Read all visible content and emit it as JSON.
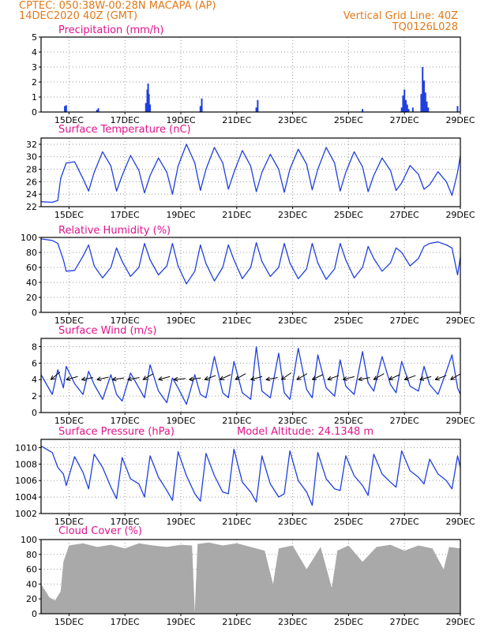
{
  "header": {
    "left_line1": "CPTEC:   050:38W-00:28N   MACAPA (AP)",
    "left_line2": "14DEC2020 40Z (GMT)",
    "right_line1": "Vertical Grid Line: 40Z",
    "right_line2": "TQ0126L028"
  },
  "x_tick_labels": [
    "15DEC",
    "17DEC",
    "19DEC",
    "21DEC",
    "23DEC",
    "25DEC",
    "27DEC",
    "29DEC"
  ],
  "colors": {
    "header": "#e07a1a",
    "title": "#e0148c",
    "series": "#1f3fe0",
    "cloud": "#a9a9a9",
    "grid": "#9a9a9a"
  },
  "chart_data": [
    {
      "type": "bar",
      "title": "Precipitation (mm/h)",
      "ylim": [
        0,
        5
      ],
      "yticks": [
        0,
        1,
        2,
        3,
        4,
        5
      ],
      "x_days": [
        0.85,
        0.9,
        2.0,
        2.05,
        3.75,
        3.8,
        3.83,
        3.86,
        3.9,
        5.7,
        5.75,
        7.7,
        7.75,
        11.5,
        12.9,
        12.95,
        13.0,
        13.05,
        13.1,
        13.15,
        13.3,
        13.6,
        13.65,
        13.7,
        13.75,
        13.8,
        13.85,
        14.9
      ],
      "values": [
        0.4,
        0.45,
        0.15,
        0.25,
        0.6,
        1.5,
        1.9,
        1.2,
        0.5,
        0.4,
        0.9,
        0.3,
        0.8,
        0.2,
        0.3,
        1.1,
        1.5,
        0.8,
        0.5,
        0.2,
        0.3,
        1.2,
        3.0,
        2.1,
        1.3,
        0.7,
        0.3,
        0.4
      ]
    },
    {
      "type": "line",
      "title": "Surface Temperature (nC)",
      "ylim": [
        22,
        33
      ],
      "yticks": [
        22,
        24,
        26,
        28,
        30,
        32
      ],
      "x_days": [
        0.0,
        0.4,
        0.6,
        0.7,
        0.9,
        1.2,
        1.5,
        1.7,
        1.9,
        2.2,
        2.5,
        2.7,
        2.9,
        3.2,
        3.5,
        3.7,
        3.9,
        4.2,
        4.5,
        4.7,
        4.9,
        5.2,
        5.5,
        5.7,
        5.9,
        6.2,
        6.5,
        6.7,
        6.9,
        7.2,
        7.5,
        7.7,
        7.9,
        8.2,
        8.5,
        8.7,
        8.9,
        9.2,
        9.5,
        9.7,
        9.9,
        10.2,
        10.5,
        10.7,
        10.9,
        11.2,
        11.5,
        11.7,
        11.9,
        12.2,
        12.5,
        12.7,
        12.9,
        13.2,
        13.5,
        13.7,
        13.9,
        14.2,
        14.5,
        14.7,
        14.9,
        15.0
      ],
      "values": [
        22.8,
        22.7,
        23.0,
        26.5,
        29.0,
        29.2,
        26.5,
        24.5,
        27.5,
        30.8,
        28.5,
        24.5,
        27.0,
        30.2,
        27.8,
        24.2,
        27.0,
        29.8,
        27.5,
        24.0,
        28.5,
        32.0,
        29.0,
        24.6,
        28.0,
        31.5,
        29.0,
        24.8,
        27.5,
        31.0,
        28.5,
        24.4,
        27.5,
        30.4,
        28.0,
        24.3,
        28.0,
        31.2,
        28.8,
        24.7,
        28.0,
        31.5,
        29.0,
        24.5,
        27.5,
        30.8,
        28.4,
        24.4,
        27.0,
        29.8,
        27.8,
        24.6,
        25.8,
        28.6,
        27.2,
        24.8,
        25.5,
        27.6,
        26.0,
        23.8,
        27.5,
        30.2
      ]
    },
    {
      "type": "line",
      "title": "Relative Humidity (%)",
      "ylim": [
        0,
        100
      ],
      "yticks": [
        0,
        20,
        40,
        60,
        80,
        100
      ],
      "x_days": [
        0.0,
        0.4,
        0.6,
        0.8,
        0.9,
        1.2,
        1.5,
        1.7,
        1.9,
        2.2,
        2.5,
        2.7,
        2.9,
        3.2,
        3.5,
        3.7,
        3.9,
        4.2,
        4.5,
        4.7,
        4.9,
        5.2,
        5.5,
        5.7,
        5.9,
        6.2,
        6.5,
        6.7,
        6.9,
        7.2,
        7.5,
        7.7,
        7.9,
        8.2,
        8.5,
        8.7,
        8.9,
        9.2,
        9.5,
        9.7,
        9.9,
        10.2,
        10.5,
        10.7,
        10.9,
        11.2,
        11.5,
        11.7,
        11.9,
        12.2,
        12.5,
        12.7,
        12.9,
        13.2,
        13.5,
        13.7,
        13.9,
        14.2,
        14.5,
        14.7,
        14.9,
        15.0
      ],
      "values": [
        98.0,
        96.0,
        92.0,
        70.0,
        55.0,
        56.0,
        75.0,
        90.0,
        62.0,
        46.0,
        60.0,
        86.0,
        68.0,
        48.0,
        60.0,
        92.0,
        70.0,
        50.0,
        62.0,
        92.0,
        62.0,
        38.0,
        55.0,
        90.0,
        65.0,
        42.0,
        60.0,
        90.0,
        70.0,
        45.0,
        60.0,
        93.0,
        68.0,
        48.0,
        60.0,
        92.0,
        66.0,
        45.0,
        58.0,
        92.0,
        66.0,
        44.0,
        58.0,
        92.0,
        70.0,
        46.0,
        60.0,
        88.0,
        72.0,
        55.0,
        66.0,
        86.0,
        80.0,
        62.0,
        72.0,
        88.0,
        92.0,
        94.0,
        90.0,
        86.0,
        50.0,
        74.0
      ]
    },
    {
      "type": "line",
      "title": "Surface Wind (m/s)",
      "ylim": [
        0,
        9
      ],
      "yticks": [
        0,
        2,
        4,
        6,
        8
      ],
      "x_days": [
        0.0,
        0.4,
        0.6,
        0.8,
        0.9,
        1.2,
        1.5,
        1.7,
        1.9,
        2.2,
        2.5,
        2.7,
        2.9,
        3.2,
        3.5,
        3.7,
        3.9,
        4.2,
        4.5,
        4.7,
        4.9,
        5.2,
        5.5,
        5.7,
        5.9,
        6.2,
        6.5,
        6.7,
        6.9,
        7.2,
        7.5,
        7.7,
        7.9,
        8.2,
        8.5,
        8.7,
        8.9,
        9.2,
        9.5,
        9.7,
        9.9,
        10.2,
        10.5,
        10.7,
        10.9,
        11.2,
        11.5,
        11.7,
        11.9,
        12.2,
        12.5,
        12.7,
        12.9,
        13.2,
        13.5,
        13.7,
        13.9,
        14.2,
        14.5,
        14.7,
        14.9,
        15.0
      ],
      "values": [
        4.6,
        2.2,
        5.2,
        3.0,
        5.6,
        3.5,
        2.2,
        5.0,
        3.4,
        1.6,
        4.6,
        2.2,
        1.4,
        4.8,
        3.0,
        1.8,
        5.8,
        2.6,
        1.2,
        4.2,
        3.0,
        1.0,
        4.6,
        2.2,
        1.8,
        6.8,
        2.4,
        1.8,
        6.2,
        2.4,
        1.6,
        8.0,
        2.6,
        1.8,
        7.2,
        2.4,
        1.6,
        7.8,
        2.8,
        1.8,
        7.0,
        3.0,
        2.0,
        6.4,
        3.2,
        2.2,
        7.4,
        3.6,
        2.6,
        6.8,
        3.4,
        2.4,
        6.2,
        3.2,
        2.6,
        5.6,
        3.4,
        2.2,
        5.0,
        7.0,
        3.0,
        2.2
      ],
      "vector_x_days": [
        0.35,
        0.9,
        1.45,
        2.0,
        2.55,
        3.1,
        3.65,
        4.2,
        4.75,
        5.3,
        5.85,
        6.4,
        6.95,
        7.5,
        8.05,
        8.6,
        9.15,
        9.7,
        10.25,
        10.8,
        11.35,
        11.9,
        12.45,
        13.0,
        13.55,
        14.1,
        14.65
      ],
      "vector_direction_deg": [
        40,
        15,
        10,
        12,
        8,
        10,
        30,
        15,
        5,
        8,
        20,
        25,
        30,
        15,
        10,
        35,
        30,
        25,
        20,
        15,
        10,
        30,
        25,
        20,
        15,
        20,
        30
      ]
    },
    {
      "type": "line",
      "title": "Surface Pressure (hPa)",
      "annotation": "Model Altitude: 24.1348 m",
      "ylim": [
        1002,
        1011
      ],
      "yticks": [
        1002,
        1004,
        1006,
        1008,
        1010
      ],
      "x_days": [
        0.0,
        0.4,
        0.6,
        0.8,
        0.9,
        1.2,
        1.5,
        1.7,
        1.9,
        2.2,
        2.5,
        2.7,
        2.9,
        3.2,
        3.5,
        3.7,
        3.9,
        4.2,
        4.5,
        4.7,
        4.9,
        5.2,
        5.5,
        5.7,
        5.9,
        6.2,
        6.5,
        6.7,
        6.9,
        7.2,
        7.5,
        7.7,
        7.9,
        8.2,
        8.5,
        8.7,
        8.9,
        9.2,
        9.5,
        9.7,
        9.9,
        10.2,
        10.5,
        10.7,
        10.9,
        11.2,
        11.5,
        11.7,
        11.9,
        12.2,
        12.5,
        12.7,
        12.9,
        13.2,
        13.5,
        13.7,
        13.9,
        14.2,
        14.5,
        14.7,
        14.9,
        15.0
      ],
      "values": [
        1010.2,
        1009.4,
        1007.6,
        1006.8,
        1005.4,
        1008.9,
        1007.0,
        1005.0,
        1009.2,
        1007.6,
        1005.2,
        1003.8,
        1008.8,
        1006.2,
        1005.6,
        1004.0,
        1009.0,
        1006.4,
        1004.8,
        1003.6,
        1009.5,
        1006.6,
        1004.4,
        1003.5,
        1009.3,
        1006.6,
        1004.6,
        1004.4,
        1009.8,
        1005.8,
        1004.6,
        1003.4,
        1009.0,
        1005.6,
        1004.0,
        1004.4,
        1009.6,
        1006.0,
        1004.6,
        1003.0,
        1009.4,
        1006.2,
        1005.0,
        1004.8,
        1009.0,
        1006.6,
        1005.4,
        1004.2,
        1009.2,
        1006.8,
        1005.8,
        1005.2,
        1009.6,
        1007.2,
        1006.4,
        1005.6,
        1008.6,
        1006.8,
        1006.0,
        1005.0,
        1009.0,
        1007.6
      ]
    },
    {
      "type": "area",
      "title": "Cloud Cover (%)",
      "ylim": [
        0,
        100
      ],
      "yticks": [
        0,
        20,
        40,
        60,
        80,
        100
      ],
      "x_days": [
        0.0,
        0.3,
        0.5,
        0.7,
        0.8,
        1.0,
        1.5,
        2.0,
        2.5,
        3.0,
        3.5,
        4.0,
        4.5,
        5.0,
        5.4,
        5.5,
        5.6,
        6.0,
        6.5,
        7.0,
        7.5,
        8.0,
        8.3,
        8.5,
        9.0,
        9.5,
        10.0,
        10.4,
        10.6,
        11.0,
        11.5,
        12.0,
        12.5,
        13.0,
        13.5,
        14.0,
        14.4,
        14.6,
        15.0
      ],
      "values": [
        40,
        22,
        18,
        30,
        70,
        92,
        95,
        90,
        93,
        88,
        95,
        92,
        90,
        93,
        92,
        2,
        94,
        96,
        92,
        95,
        90,
        85,
        40,
        88,
        92,
        60,
        90,
        35,
        85,
        92,
        70,
        90,
        93,
        85,
        92,
        88,
        60,
        90,
        88
      ]
    }
  ]
}
